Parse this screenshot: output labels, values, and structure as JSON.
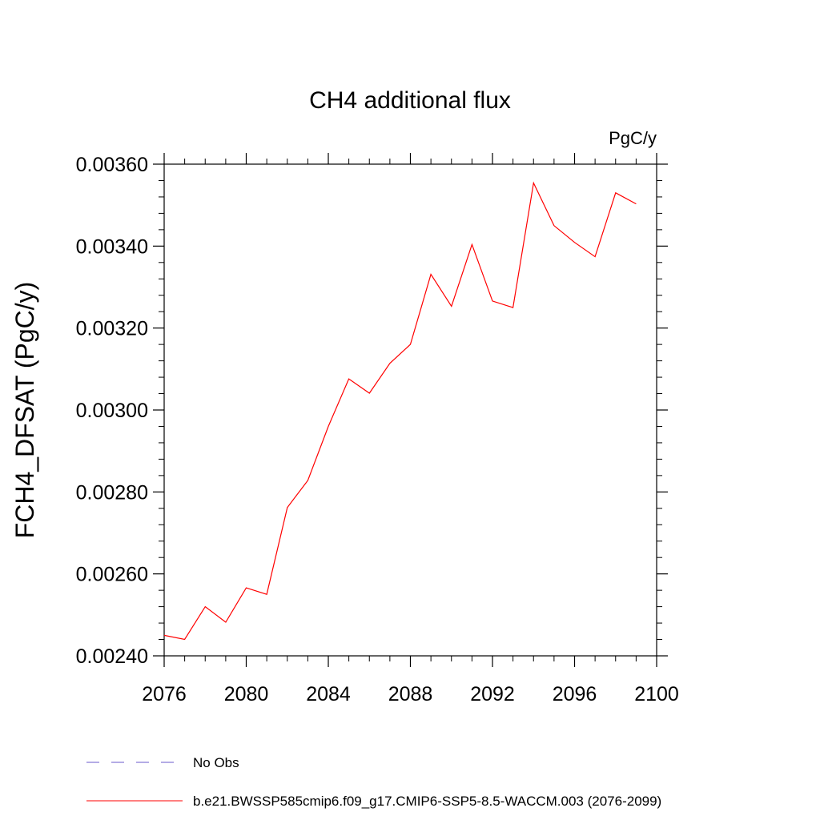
{
  "chart_data": {
    "type": "line",
    "title": "CH4 additional flux",
    "units_label": "PgC/y",
    "ylabel": "FCH4_DFSAT  (PgC/y)",
    "xlabel": "",
    "xlim": [
      2076,
      2100
    ],
    "ylim": [
      0.0024,
      0.0036
    ],
    "x_ticks": [
      2076,
      2080,
      2084,
      2088,
      2092,
      2096,
      2100
    ],
    "x_tick_labels": [
      "2076",
      "2080",
      "2084",
      "2088",
      "2092",
      "2096",
      "2100"
    ],
    "y_ticks": [
      0.0024,
      0.0026,
      0.0028,
      0.003,
      0.0032,
      0.0034,
      0.0036
    ],
    "y_tick_labels": [
      "0.00240",
      "0.00260",
      "0.00280",
      "0.00300",
      "0.00320",
      "0.00340",
      "0.00360"
    ],
    "grid": false,
    "legend_position": "bottom",
    "series": [
      {
        "name": "b.e21.BWSSP585cmip6.f09_g17.CMIP6-SSP5-8.5-WACCM.003 (2076-2099)",
        "color": "#ff0000",
        "style": "solid",
        "x": [
          2076,
          2077,
          2078,
          2079,
          2080,
          2081,
          2082,
          2083,
          2084,
          2085,
          2086,
          2087,
          2088,
          2089,
          2090,
          2091,
          2092,
          2093,
          2094,
          2095,
          2096,
          2097,
          2098,
          2099
        ],
        "values": [
          0.00245,
          0.00244,
          0.00252,
          0.002482,
          0.002566,
          0.00255,
          0.002762,
          0.002828,
          0.00296,
          0.003076,
          0.003041,
          0.003114,
          0.00316,
          0.003331,
          0.003253,
          0.003404,
          0.003266,
          0.00325,
          0.003554,
          0.00345,
          0.003409,
          0.003374,
          0.00353,
          0.003503
        ]
      }
    ],
    "legend": [
      {
        "label": "No Obs",
        "color": "#6a5acd",
        "style": "dashed"
      },
      {
        "label": "b.e21.BWSSP585cmip6.f09_g17.CMIP6-SSP5-8.5-WACCM.003 (2076-2099)",
        "color": "#ff0000",
        "style": "solid"
      }
    ]
  }
}
